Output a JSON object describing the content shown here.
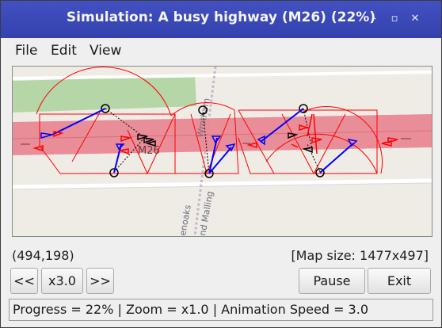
{
  "window": {
    "title": "Simulation: A busy highway (M26) (22%)",
    "minimize_glyph": "–",
    "maximize_glyph": "▫",
    "close_glyph": "✕"
  },
  "menubar": {
    "items": [
      "File",
      "Edit",
      "View"
    ]
  },
  "map": {
    "road_label": "M26",
    "street_label_1": "Wrotham",
    "street_label_2": "enoaks",
    "street_label_3": "nd Malling",
    "colors": {
      "highway": "#e8848f",
      "vehicle_agent": "#0000ff",
      "vehicle_other": "#ff0000",
      "sensor_zone": "#ff0000",
      "park": "#b5d6a6"
    }
  },
  "coords": {
    "text": "(494,198)"
  },
  "map_size": {
    "text": "[Map size: 1477x497]"
  },
  "controls": {
    "rewind_label": "<<",
    "speed_label": "x3.0",
    "forward_label": ">>",
    "pause_label": "Pause",
    "exit_label": "Exit"
  },
  "status": {
    "text": "Progress = 22% | Zoom = x1.0 | Animation Speed = 3.0"
  }
}
